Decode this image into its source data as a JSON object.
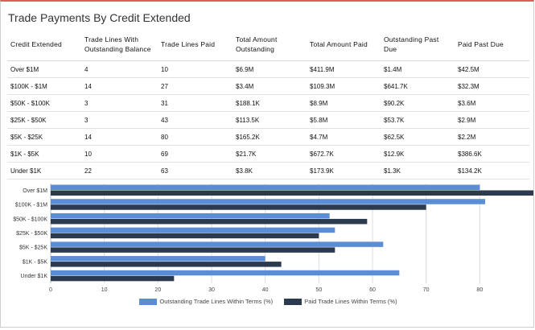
{
  "title": "Trade Payments By Credit Extended",
  "table": {
    "headers": [
      "Credit Extended",
      "Trade Lines With Outstanding Balance",
      "Trade Lines Paid",
      "Total Amount Outstanding",
      "Total Amount Paid",
      "Outstanding Past Due",
      "Paid Past Due"
    ],
    "rows": [
      [
        "Over $1M",
        "4",
        "10",
        "$6.9M",
        "$411.9M",
        "$1.4M",
        "$42.5M"
      ],
      [
        "$100K - $1M",
        "14",
        "27",
        "$3.4M",
        "$109.3M",
        "$641.7K",
        "$32.3M"
      ],
      [
        "$50K - $100K",
        "3",
        "31",
        "$188.1K",
        "$8.9M",
        "$90.2K",
        "$3.6M"
      ],
      [
        "$25K - $50K",
        "3",
        "43",
        "$113.5K",
        "$5.8M",
        "$53.7K",
        "$2.9M"
      ],
      [
        "$5K - $25K",
        "14",
        "80",
        "$165.2K",
        "$4.7M",
        "$62.5K",
        "$2.2M"
      ],
      [
        "$1K - $5K",
        "10",
        "69",
        "$21.7K",
        "$672.7K",
        "$12.9K",
        "$386.6K"
      ],
      [
        "Under $1K",
        "22",
        "63",
        "$3.8K",
        "$173.9K",
        "$1.3K",
        "$134.2K"
      ]
    ]
  },
  "chart_data": {
    "type": "bar",
    "orientation": "horizontal",
    "categories": [
      "Over $1M",
      "$100K - $1M",
      "$50K - $100K",
      "$25K - $50K",
      "$5K - $25K",
      "$1K - $5K",
      "Under $1K"
    ],
    "series": [
      {
        "name": "Outstanding Trade Lines Within Terms (%)",
        "color": "#5b8dd6",
        "values": [
          80,
          81,
          52,
          53,
          62,
          40,
          65
        ]
      },
      {
        "name": "Paid Trade Lines Within Terms (%)",
        "color": "#2b3a4e",
        "values": [
          90,
          70,
          59,
          50,
          53,
          43,
          23
        ]
      }
    ],
    "xlim": [
      0,
      90
    ],
    "xticks": [
      0,
      10,
      20,
      30,
      40,
      50,
      60,
      70,
      80
    ],
    "grid": true,
    "legend_position": "bottom"
  }
}
